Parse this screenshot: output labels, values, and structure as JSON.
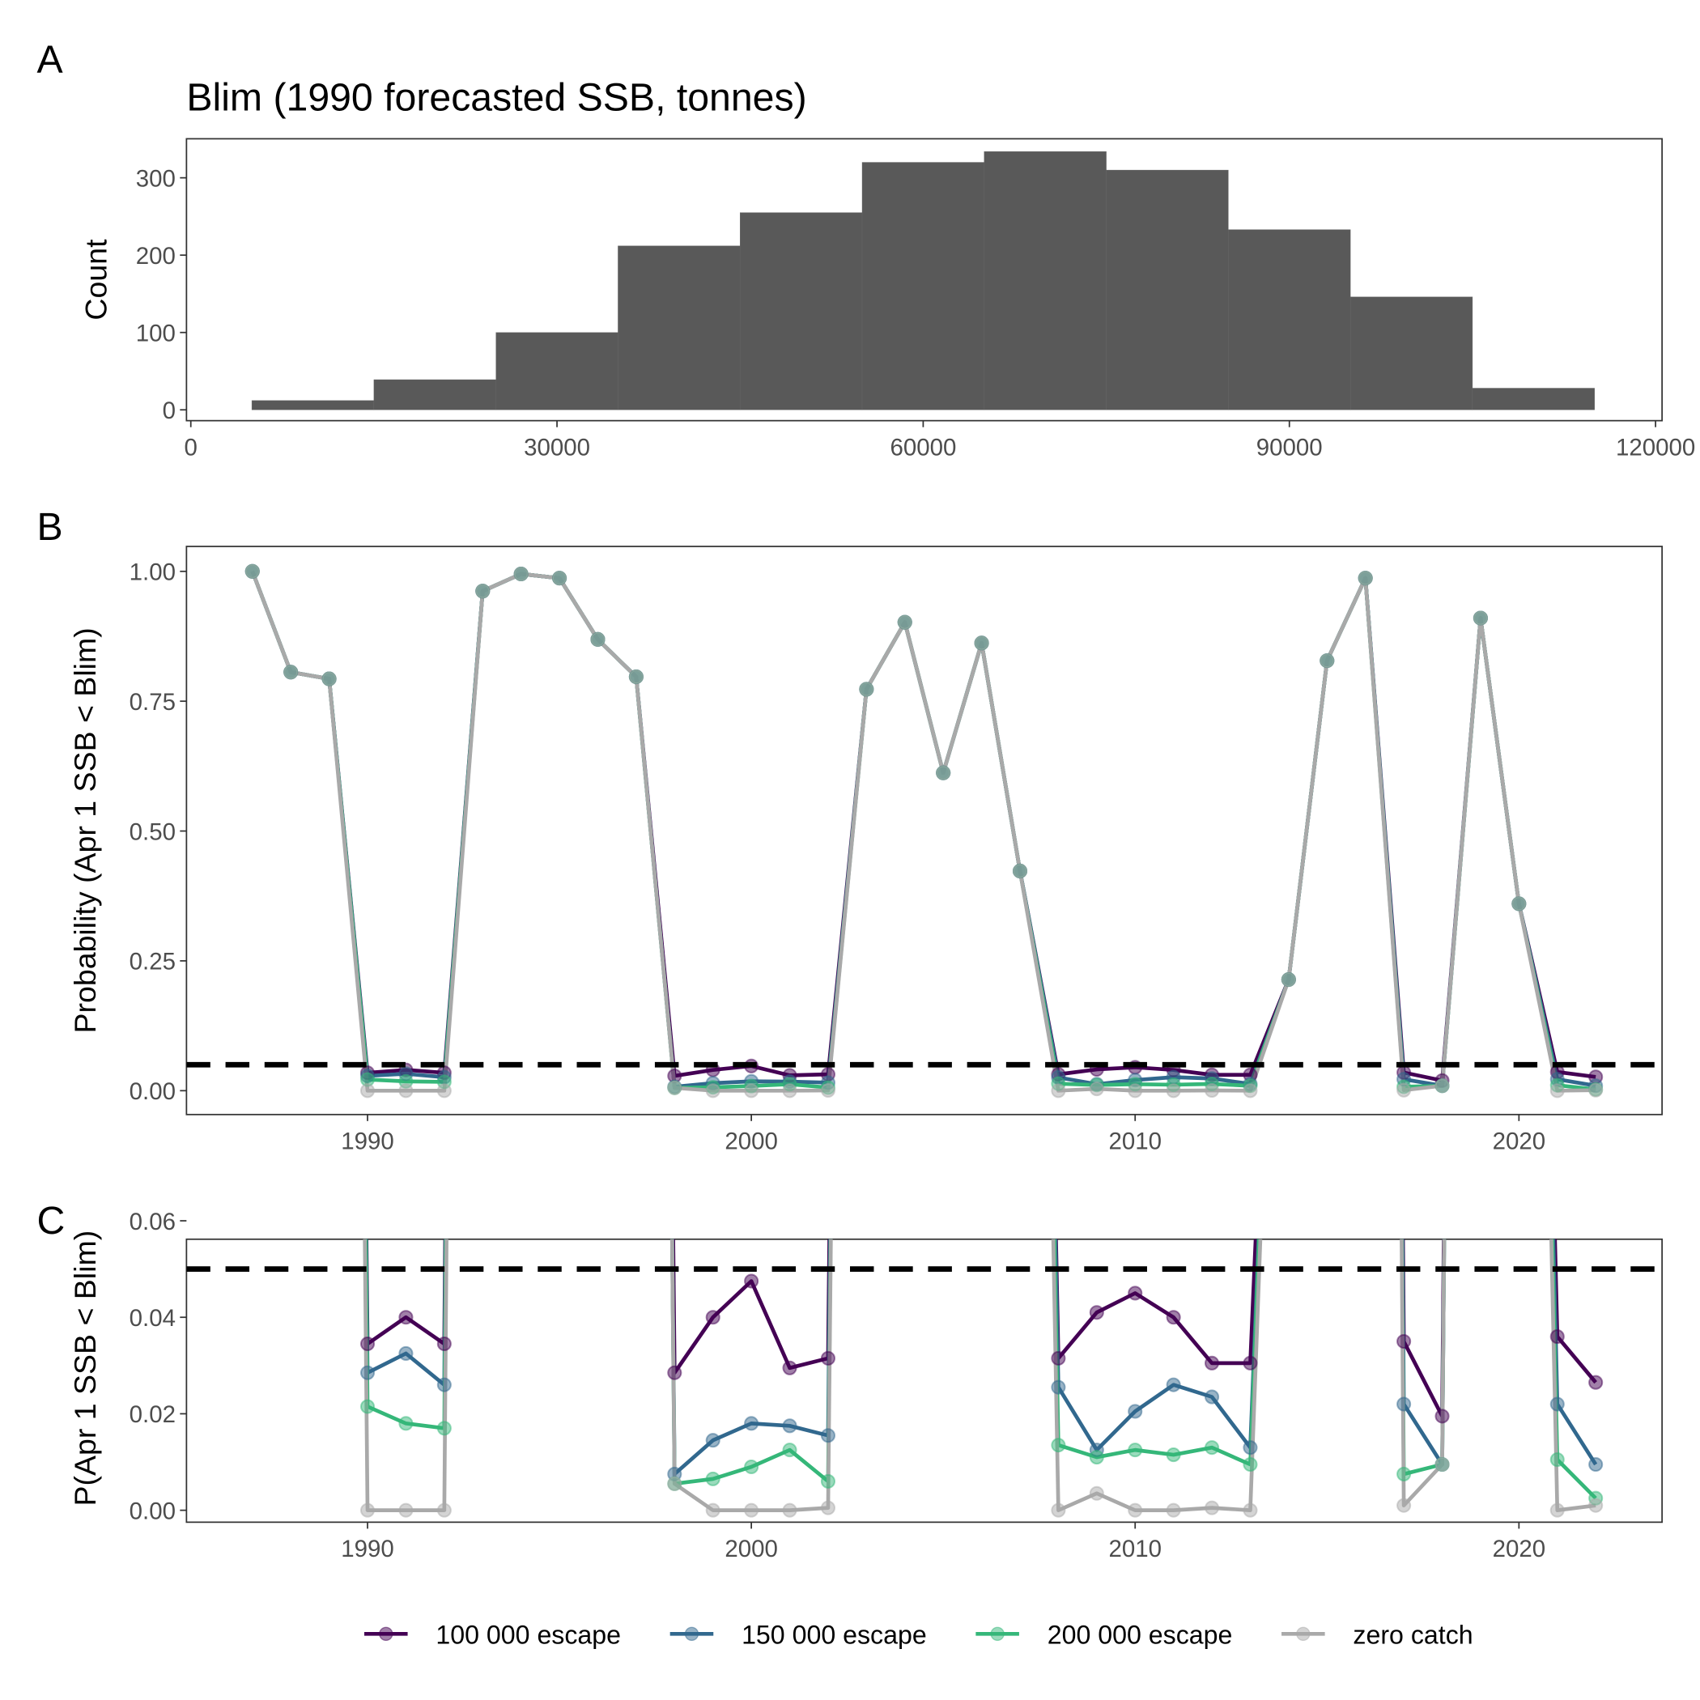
{
  "chart_data": [
    {
      "panel": "A",
      "type": "bar",
      "title": "Blim (1990 forecasted SSB, tonnes)",
      "xlabel": "",
      "ylabel": "Count",
      "bin_centers": [
        10000,
        20000,
        30000,
        40000,
        50000,
        60000,
        70000,
        80000,
        90000,
        100000,
        110000
      ],
      "bin_width": 10000,
      "values": [
        12,
        39,
        100,
        212,
        255,
        320,
        334,
        310,
        233,
        146,
        28
      ],
      "xlim": [
        0,
        120000
      ],
      "ylim": [
        0,
        345
      ],
      "xticks": [
        "0",
        "30000",
        "60000",
        "90000",
        "120000"
      ],
      "yticks": [
        "0",
        "100",
        "200",
        "300"
      ],
      "bar_color": "#595959",
      "grid": false
    },
    {
      "panel": "B",
      "type": "line",
      "ylabel": "Probability (Apr 1 SSB < Blim)",
      "xlabel": "",
      "xlim": [
        1986,
        2024
      ],
      "ylim": [
        0,
        1
      ],
      "reference_line": 0.05,
      "xticks": [
        "1990",
        "2000",
        "2010",
        "2020"
      ],
      "yticks": [
        "0.00",
        "0.25",
        "0.50",
        "0.75",
        "1.00"
      ],
      "grid": false
    },
    {
      "panel": "C",
      "type": "line",
      "ylabel": "P(Apr 1 SSB < Blim)",
      "xlabel": "",
      "xlim": [
        1986,
        2024
      ],
      "ylim": [
        0,
        0.06
      ],
      "reference_line": 0.05,
      "xticks": [
        "1990",
        "2000",
        "2010",
        "2020"
      ],
      "yticks": [
        "0.00",
        "0.02",
        "0.04",
        "0.06"
      ],
      "grid": false
    }
  ],
  "years": [
    1987,
    1988,
    1989,
    1990,
    1991,
    1992,
    1993,
    1994,
    1995,
    1996,
    1997,
    1998,
    1999,
    2000,
    2001,
    2002,
    2003,
    2004,
    2005,
    2006,
    2007,
    2008,
    2009,
    2010,
    2011,
    2012,
    2013,
    2014,
    2015,
    2016,
    2017,
    2018,
    2019,
    2020,
    2021,
    2022
  ],
  "series": [
    {
      "name": "100 000 escape",
      "color": "#440154",
      "values": [
        1,
        0.806,
        0.793,
        0.0345,
        0.04,
        0.0345,
        0.962,
        0.995,
        0.987,
        0.869,
        0.797,
        0.0285,
        0.04,
        0.0475,
        0.0295,
        0.0315,
        0.773,
        0.902,
        0.612,
        0.862,
        0.423,
        0.0315,
        0.041,
        0.045,
        0.04,
        0.0305,
        0.0305,
        0.214,
        0.828,
        0.987,
        0.035,
        0.0195,
        0.91,
        0.36,
        0.036,
        0.0265
      ]
    },
    {
      "name": "150 000 escape",
      "color": "#31688e",
      "values": [
        1,
        0.806,
        0.793,
        0.0285,
        0.0325,
        0.026,
        0.962,
        0.995,
        0.987,
        0.869,
        0.797,
        0.0075,
        0.0145,
        0.018,
        0.0175,
        0.0155,
        0.773,
        0.902,
        0.612,
        0.862,
        0.423,
        0.0255,
        0.0125,
        0.0205,
        0.026,
        0.0235,
        0.013,
        0.214,
        0.828,
        0.987,
        0.022,
        0.0095,
        0.91,
        0.36,
        0.022,
        0.0095
      ]
    },
    {
      "name": "200 000 escape",
      "color": "#35b779",
      "values": [
        1,
        0.806,
        0.793,
        0.0215,
        0.018,
        0.017,
        0.962,
        0.995,
        0.987,
        0.869,
        0.797,
        0.0055,
        0.0065,
        0.009,
        0.0125,
        0.006,
        0.773,
        0.902,
        0.612,
        0.862,
        0.423,
        0.0135,
        0.011,
        0.0125,
        0.0115,
        0.013,
        0.0095,
        0.214,
        0.828,
        0.987,
        0.0075,
        0.0095,
        0.91,
        0.36,
        0.0105,
        0.0025
      ]
    },
    {
      "name": "zero catch",
      "color": "#a9a9a9",
      "values": [
        1,
        0.806,
        0.793,
        0,
        0,
        0,
        0.962,
        0.995,
        0.987,
        0.869,
        0.797,
        0.0055,
        0,
        0,
        0,
        0.0005,
        0.773,
        0.902,
        0.612,
        0.862,
        0.423,
        0,
        0.0035,
        0,
        0,
        0.0005,
        0,
        0.214,
        0.828,
        0.987,
        0.001,
        0.0095,
        0.91,
        0.36,
        0,
        0.001
      ]
    }
  ],
  "panel_labels": [
    "A",
    "B",
    "C"
  ]
}
